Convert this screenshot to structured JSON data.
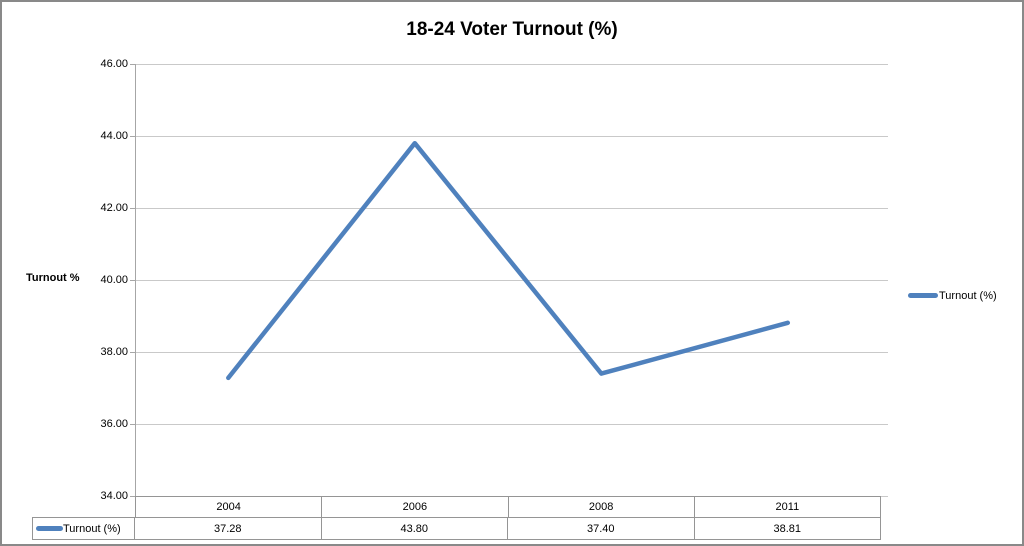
{
  "colors": {
    "line": "#4F81BD",
    "gridline": "#C9C9C9",
    "axis": "#A6A6A6",
    "table_border": "#959595",
    "frame_border": "#898989",
    "background": "#FFFFFF",
    "text": "#000000"
  },
  "legend": {
    "label": "Turnout (%)",
    "position": "right"
  },
  "data_table": {
    "series_label": "Turnout (%)"
  },
  "chart_data": {
    "type": "line",
    "title": "18-24 Voter Turnout (%)",
    "xlabel": "",
    "ylabel": "Turnout %",
    "categories": [
      "2004",
      "2006",
      "2008",
      "2011"
    ],
    "series": [
      {
        "name": "Turnout (%)",
        "values": [
          37.28,
          43.8,
          37.4,
          38.81
        ],
        "display_values": [
          "37.28",
          "43.80",
          "37.40",
          "38.81"
        ],
        "color": "#4F81BD"
      }
    ],
    "ylim": [
      34,
      46
    ],
    "y_tick_step": 2,
    "y_ticks": [
      "46.00",
      "44.00",
      "42.00",
      "40.00",
      "38.00",
      "36.00",
      "34.00"
    ],
    "grid": true,
    "legend_position": "right",
    "data_table_shown": true
  }
}
